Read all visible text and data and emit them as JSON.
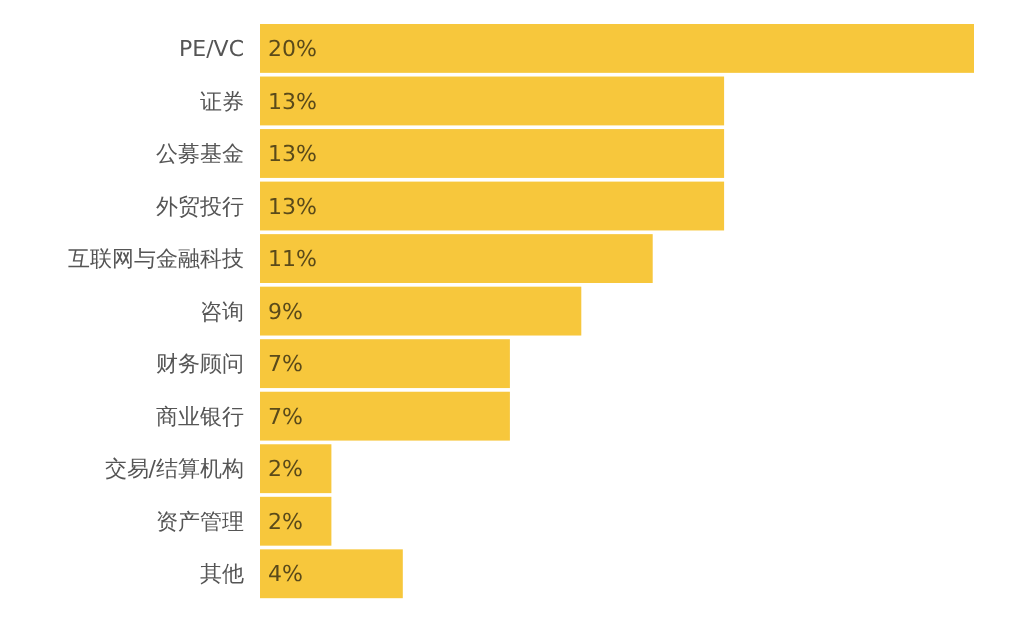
{
  "chart_data": {
    "type": "bar",
    "orientation": "horizontal",
    "categories": [
      "PE/VC",
      "证券",
      "公募基金",
      "外贸投行",
      "互联网与金融科技",
      "咨询",
      "财务顾问",
      "商业银行",
      "交易/结算机构",
      "资产管理",
      "其他"
    ],
    "values": [
      20,
      13,
      13,
      13,
      11,
      9,
      7,
      7,
      2,
      2,
      4
    ],
    "value_labels": [
      "20%",
      "13%",
      "13%",
      "13%",
      "11%",
      "9%",
      "7%",
      "7%",
      "2%",
      "2%",
      "4%"
    ],
    "color": "#f7c73c"
  }
}
